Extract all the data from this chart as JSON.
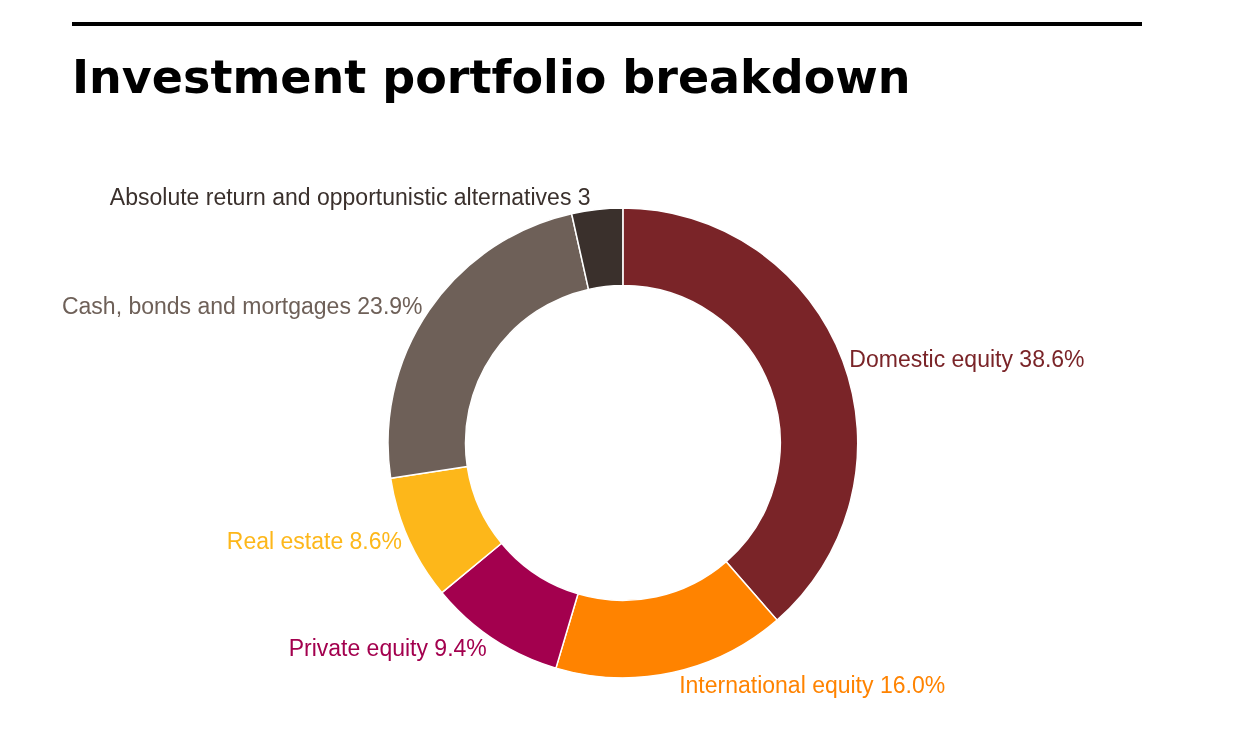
{
  "chart_data": {
    "type": "donut",
    "title": "Investment portfolio breakdown",
    "categories": [
      "Domestic equity",
      "International equity",
      "Private equity",
      "Real estate",
      "Cash, bonds and mortgages",
      "Absolute return and opportunistic alternatives"
    ],
    "values": [
      38.6,
      16.0,
      9.4,
      8.6,
      23.9,
      3.5
    ],
    "value_labels": [
      "38.6%",
      "16.0%",
      "9.4%",
      "8.6%",
      "23.9%",
      "3"
    ],
    "colors": [
      "#7a2428",
      "#ff8300",
      "#a3004e",
      "#fdb71a",
      "#6e6058",
      "#3a302c"
    ],
    "legend": false
  }
}
